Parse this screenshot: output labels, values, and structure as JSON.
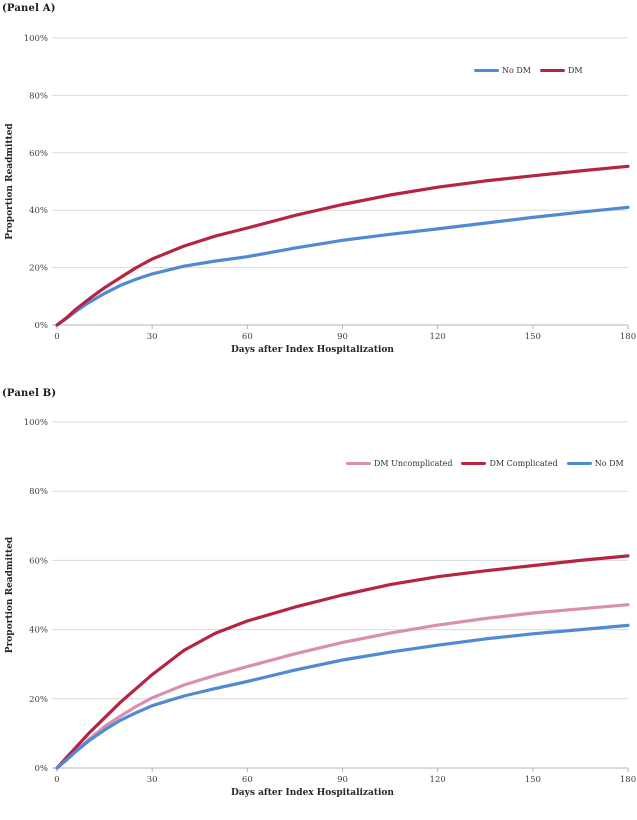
{
  "page": {
    "background": "#ffffff"
  },
  "colors": {
    "no_dm_blue": "#4f8ad2",
    "dm_red": "#b52443",
    "dm_uncomplicated_pink": "#d88fb0",
    "gridline": "#d9d9d9",
    "axis_line": "#b5b5b5",
    "tick_text": "#3f3f3f"
  },
  "chart_data": [
    {
      "type": "line",
      "title": "(Panel A)",
      "xlabel": "Days after Index Hospitalization",
      "ylabel": "Proportion Readmitted",
      "xlim": [
        0,
        180
      ],
      "ylim": [
        0,
        100
      ],
      "x_ticks": [
        0,
        30,
        60,
        90,
        120,
        150,
        180
      ],
      "y_ticks_percent": [
        0,
        20,
        40,
        60,
        80,
        100
      ],
      "grid": true,
      "legend_position": "inside-top-right",
      "x": [
        0,
        3,
        6,
        10,
        15,
        20,
        25,
        30,
        40,
        50,
        60,
        75,
        90,
        105,
        120,
        135,
        150,
        165,
        180
      ],
      "series": [
        {
          "name": "No DM",
          "color": "#4f8ad2",
          "values": [
            0,
            2.3,
            4.8,
            7.8,
            11,
            13.8,
            16,
            17.8,
            20.5,
            22.3,
            23.8,
            26.8,
            29.5,
            31.6,
            33.5,
            35.5,
            37.5,
            39.3,
            41
          ]
        },
        {
          "name": "DM",
          "color": "#b52443",
          "values": [
            0,
            2.5,
            5.5,
            9,
            13,
            16.5,
            20,
            23,
            27.5,
            31,
            33.8,
            38.2,
            42,
            45.3,
            48,
            50.2,
            52,
            53.7,
            55.3
          ]
        }
      ]
    },
    {
      "type": "line",
      "title": "(Panel B)",
      "xlabel": "Days after Index Hospitalization",
      "ylabel": "Proportion Readmitted",
      "xlim": [
        0,
        180
      ],
      "ylim": [
        0,
        100
      ],
      "x_ticks": [
        0,
        30,
        60,
        90,
        120,
        150,
        180
      ],
      "y_ticks_percent": [
        0,
        20,
        40,
        60,
        80,
        100
      ],
      "grid": true,
      "legend_position": "inside-top-right",
      "x": [
        0,
        3,
        6,
        10,
        15,
        20,
        25,
        30,
        40,
        50,
        60,
        75,
        90,
        105,
        120,
        135,
        150,
        165,
        180
      ],
      "series": [
        {
          "name": "DM Uncomplicated",
          "color": "#d88fb0",
          "values": [
            0,
            2.5,
            5,
            8.2,
            12,
            15,
            17.8,
            20.3,
            24,
            26.8,
            29.3,
            33,
            36.3,
            39,
            41.3,
            43.2,
            44.8,
            46,
            47.2
          ]
        },
        {
          "name": "DM Complicated",
          "color": "#b52443",
          "values": [
            0,
            3,
            6,
            10,
            14.5,
            19,
            23,
            27,
            34,
            39,
            42.5,
            46.5,
            50,
            53,
            55.3,
            57,
            58.5,
            60,
            61.3
          ]
        },
        {
          "name": "No DM",
          "color": "#4f8ad2",
          "values": [
            0,
            2.3,
            4.8,
            7.8,
            11,
            13.8,
            16,
            18,
            20.8,
            23,
            25,
            28.3,
            31.2,
            33.5,
            35.5,
            37.3,
            38.8,
            40,
            41.2
          ]
        }
      ]
    }
  ]
}
